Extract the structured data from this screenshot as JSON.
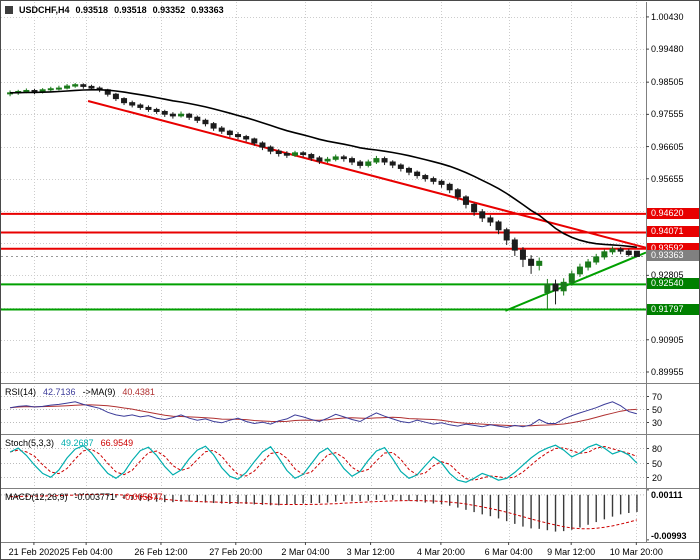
{
  "colors": {
    "background": "#FFFFFF",
    "bull": "#1A7A1A",
    "bear": "#1C1C1C",
    "grid": "#CCCCCC",
    "ma": "#000000",
    "separator": "#808080",
    "text": "#000000",
    "resistance": "#E80000",
    "support": "#00A000",
    "current_price_box": "#808080"
  },
  "chart_data": [
    {
      "type": "candlestick",
      "symbol": "USDCHF,H4",
      "ohlc": [
        "0.93518",
        "0.93518",
        "0.93352",
        "0.93363"
      ],
      "ylim": [
        0.8963,
        1.0087
      ],
      "ma_period": 20,
      "grid_prices": [
        1.0043,
        0.9948,
        0.98505,
        0.97555,
        0.96605,
        0.95655,
        0.94705,
        0.93755,
        0.92805,
        0.91855,
        0.90905,
        0.89955
      ],
      "axis_labels": [
        {
          "text": "1.00430",
          "price": 1.0043
        },
        {
          "text": "0.99480",
          "price": 0.9948
        },
        {
          "text": "0.98505",
          "price": 0.98505
        },
        {
          "text": "0.97555",
          "price": 0.97555
        },
        {
          "text": "0.96605",
          "price": 0.96605
        },
        {
          "text": "0.95655",
          "price": 0.95655
        },
        {
          "text": "0.92805",
          "price": 0.92805
        },
        {
          "text": "0.90905",
          "price": 0.90905
        },
        {
          "text": "0.89955",
          "price": 0.89955
        }
      ],
      "price_boxes": [
        {
          "text": "0.94620",
          "price": 0.9462,
          "bg": "#E80000"
        },
        {
          "text": "0.94071",
          "price": 0.94071,
          "bg": "#E80000"
        },
        {
          "text": "0.93592",
          "price": 0.93592,
          "bg": "#E80000"
        },
        {
          "text": "0.93363",
          "price": 0.93363,
          "bg": "#808080",
          "dashed_line": true
        },
        {
          "text": "0.92540",
          "price": 0.9254,
          "bg": "#008000"
        },
        {
          "text": "0.91797",
          "price": 0.91797,
          "bg": "#008000"
        }
      ],
      "hlines": [
        {
          "price": 0.9462,
          "color": "#E80000"
        },
        {
          "price": 0.94071,
          "color": "#E80000"
        },
        {
          "price": 0.93592,
          "color": "#E80000"
        },
        {
          "price": 0.9254,
          "color": "#00A000"
        },
        {
          "price": 0.91797,
          "color": "#00A000"
        }
      ],
      "trendlines": [
        {
          "x1f": 0.135,
          "p1": 0.9795,
          "x2f": 1.0,
          "p2": 0.9362,
          "color": "#E80000"
        },
        {
          "x1f": 0.782,
          "p1": 0.9176,
          "x2f": 1.0,
          "p2": 0.9348,
          "color": "#00A000"
        }
      ],
      "x_labels": [
        {
          "text": "21 Feb 2020",
          "xf": 0.051
        },
        {
          "text": "25 Feb 04:00",
          "xf": 0.132
        },
        {
          "text": "26 Feb 12:00",
          "xf": 0.248
        },
        {
          "text": "27 Feb 20:00",
          "xf": 0.364
        },
        {
          "text": "2 Mar 04:00",
          "xf": 0.472
        },
        {
          "text": "3 Mar 12:00",
          "xf": 0.573
        },
        {
          "text": "4 Mar 20:00",
          "xf": 0.682
        },
        {
          "text": "6 Mar 04:00",
          "xf": 0.787
        },
        {
          "text": "9 Mar 12:00",
          "xf": 0.884
        },
        {
          "text": "10 Mar 20:00",
          "xf": 0.985
        }
      ],
      "candles": [
        [
          0.9816,
          0.9826,
          0.9809,
          0.9819
        ],
        [
          0.9819,
          0.9828,
          0.9813,
          0.9823
        ],
        [
          0.9823,
          0.9832,
          0.9818,
          0.9826
        ],
        [
          0.9826,
          0.9831,
          0.9815,
          0.9822
        ],
        [
          0.9822,
          0.9833,
          0.9817,
          0.9828
        ],
        [
          0.9828,
          0.9837,
          0.9823,
          0.9831
        ],
        [
          0.9831,
          0.984,
          0.9826,
          0.9833
        ],
        [
          0.9833,
          0.9845,
          0.9829,
          0.9839
        ],
        [
          0.9839,
          0.9848,
          0.9834,
          0.9843
        ],
        [
          0.9843,
          0.9847,
          0.9831,
          0.9838
        ],
        [
          0.9838,
          0.9843,
          0.9827,
          0.9833
        ],
        [
          0.9833,
          0.9838,
          0.9821,
          0.9828
        ],
        [
          0.9828,
          0.9831,
          0.9808,
          0.9815
        ],
        [
          0.9815,
          0.9819,
          0.9795,
          0.9802
        ],
        [
          0.9802,
          0.9806,
          0.9783,
          0.979
        ],
        [
          0.979,
          0.9796,
          0.9776,
          0.9783
        ],
        [
          0.9783,
          0.9788,
          0.9769,
          0.9776
        ],
        [
          0.9776,
          0.9782,
          0.9763,
          0.977
        ],
        [
          0.977,
          0.9775,
          0.9757,
          0.9764
        ],
        [
          0.9764,
          0.9769,
          0.9748,
          0.9756
        ],
        [
          0.9756,
          0.9762,
          0.9743,
          0.9751
        ],
        [
          0.9751,
          0.9764,
          0.9746,
          0.9756
        ],
        [
          0.9756,
          0.976,
          0.9739,
          0.9747
        ],
        [
          0.9747,
          0.9752,
          0.973,
          0.9738
        ],
        [
          0.9738,
          0.9743,
          0.972,
          0.9728
        ],
        [
          0.9728,
          0.9733,
          0.9707,
          0.9715
        ],
        [
          0.9715,
          0.9721,
          0.9698,
          0.9706
        ],
        [
          0.9706,
          0.971,
          0.9688,
          0.9696
        ],
        [
          0.9696,
          0.9703,
          0.9682,
          0.969
        ],
        [
          0.969,
          0.9695,
          0.9675,
          0.9683
        ],
        [
          0.9683,
          0.9687,
          0.9663,
          0.9671
        ],
        [
          0.9671,
          0.9676,
          0.965,
          0.9659
        ],
        [
          0.9659,
          0.9664,
          0.9638,
          0.9647
        ],
        [
          0.9647,
          0.9653,
          0.9631,
          0.964
        ],
        [
          0.964,
          0.9647,
          0.9627,
          0.9635
        ],
        [
          0.9635,
          0.9648,
          0.963,
          0.9642
        ],
        [
          0.9642,
          0.9647,
          0.9629,
          0.9637
        ],
        [
          0.9637,
          0.9642,
          0.9618,
          0.9627
        ],
        [
          0.9627,
          0.9633,
          0.9609,
          0.9618
        ],
        [
          0.9618,
          0.963,
          0.9612,
          0.9623
        ],
        [
          0.9623,
          0.9637,
          0.9617,
          0.963
        ],
        [
          0.963,
          0.9636,
          0.9616,
          0.9625
        ],
        [
          0.9625,
          0.9631,
          0.9606,
          0.9615
        ],
        [
          0.9615,
          0.9621,
          0.9596,
          0.9605
        ],
        [
          0.9605,
          0.9622,
          0.9599,
          0.9615
        ],
        [
          0.9615,
          0.9633,
          0.9609,
          0.9625
        ],
        [
          0.9625,
          0.9631,
          0.9606,
          0.9615
        ],
        [
          0.9615,
          0.962,
          0.9597,
          0.9606
        ],
        [
          0.9606,
          0.9611,
          0.9587,
          0.9596
        ],
        [
          0.9596,
          0.9601,
          0.9576,
          0.9585
        ],
        [
          0.9585,
          0.959,
          0.9566,
          0.9575
        ],
        [
          0.9575,
          0.958,
          0.9557,
          0.9566
        ],
        [
          0.9566,
          0.9572,
          0.9549,
          0.9558
        ],
        [
          0.9558,
          0.9563,
          0.9539,
          0.9549
        ],
        [
          0.9549,
          0.9554,
          0.9523,
          0.9533
        ],
        [
          0.9533,
          0.9538,
          0.9501,
          0.9512
        ],
        [
          0.9512,
          0.9517,
          0.9478,
          0.949
        ],
        [
          0.949,
          0.9495,
          0.9456,
          0.9468
        ],
        [
          0.9468,
          0.9476,
          0.9438,
          0.945
        ],
        [
          0.945,
          0.9458,
          0.9426,
          0.9438
        ],
        [
          0.9438,
          0.9443,
          0.9402,
          0.9415
        ],
        [
          0.9415,
          0.9421,
          0.937,
          0.9385
        ],
        [
          0.9385,
          0.9392,
          0.9338,
          0.9355
        ],
        [
          0.9355,
          0.9364,
          0.9305,
          0.9328
        ],
        [
          0.9328,
          0.934,
          0.9285,
          0.931
        ],
        [
          0.931,
          0.9333,
          0.9295,
          0.9322
        ],
        [
          0.923,
          0.927,
          0.918,
          0.9255
        ],
        [
          0.9255,
          0.9268,
          0.9195,
          0.9235
        ],
        [
          0.9235,
          0.9272,
          0.9221,
          0.926
        ],
        [
          0.926,
          0.9295,
          0.925,
          0.9285
        ],
        [
          0.9285,
          0.9315,
          0.9276,
          0.9305
        ],
        [
          0.9305,
          0.9329,
          0.9295,
          0.932
        ],
        [
          0.932,
          0.9344,
          0.9312,
          0.9335
        ],
        [
          0.9335,
          0.9357,
          0.9327,
          0.935
        ],
        [
          0.935,
          0.9366,
          0.9342,
          0.9358
        ],
        [
          0.9358,
          0.9364,
          0.9343,
          0.9352
        ],
        [
          0.9352,
          0.9359,
          0.9336,
          0.9342
        ],
        [
          0.93518,
          0.93518,
          0.93352,
          0.93363
        ]
      ]
    },
    {
      "type": "line",
      "label": "RSI(14)",
      "value": "42.7136",
      "ma_label": "->MA(9)",
      "ma_value": "40.4381",
      "levels": [
        70,
        50,
        30
      ],
      "ylim": [
        12,
        88
      ],
      "ma_period": 9,
      "colors": {
        "main": "#3C3C99",
        "signal": "#B03030"
      },
      "values": [
        52,
        54,
        55,
        53,
        54,
        56,
        57,
        59,
        61,
        57,
        54,
        51,
        45,
        41,
        39,
        41,
        38,
        40,
        36,
        34,
        37,
        41,
        36,
        33,
        35,
        31,
        29,
        33,
        36,
        31,
        28,
        30,
        27,
        32,
        35,
        41,
        38,
        34,
        31,
        36,
        42,
        38,
        34,
        31,
        38,
        44,
        39,
        35,
        31,
        29,
        33,
        30,
        27,
        29,
        26,
        24,
        27,
        25,
        23,
        26,
        24,
        22,
        25,
        23,
        26,
        34,
        28,
        28,
        35,
        40,
        44,
        48,
        52,
        57,
        61,
        55,
        46,
        42.71
      ]
    },
    {
      "type": "line",
      "label": "Stoch(5,3,3)",
      "value_k": "49.2687",
      "value_d": "66.9549",
      "levels": [
        80,
        50,
        20
      ],
      "ylim": [
        -2,
        107
      ],
      "d_period": 3,
      "colors": {
        "k": "#00AEAE",
        "d": "#CC0000"
      },
      "values": [
        72,
        80,
        65,
        45,
        28,
        20,
        35,
        60,
        78,
        85,
        70,
        48,
        28,
        18,
        30,
        55,
        75,
        82,
        65,
        42,
        25,
        35,
        58,
        76,
        84,
        66,
        40,
        22,
        16,
        30,
        52,
        72,
        83,
        60,
        34,
        18,
        26,
        48,
        70,
        80,
        62,
        38,
        22,
        32,
        55,
        74,
        81,
        58,
        32,
        18,
        25,
        44,
        62,
        50,
        28,
        14,
        10,
        18,
        28,
        22,
        14,
        18,
        30,
        45,
        60,
        72,
        80,
        86,
        76,
        62,
        70,
        82,
        88,
        80,
        68,
        74,
        66,
        49.27
      ]
    },
    {
      "type": "macd",
      "label": "MACD(12,26,9)",
      "value_main": "-0.003771",
      "value_signal": "-0.005877",
      "ylim": [
        -0.0104,
        0.0013
      ],
      "signal_period": 9,
      "axis_labels": [
        {
          "text": "0.00111",
          "v": 0.00111
        },
        {
          "text": "-0.00993",
          "v": -0.00993
        }
      ],
      "colors": {
        "hist": "#3A3A3A",
        "signal": "#CC0000"
      },
      "values": [
        -0.0004,
        -0.0003,
        -0.0002,
        -0.0002,
        -0.0001,
        0,
        0.0001,
        0.0003,
        0.0004,
        0.0004,
        0.0002,
        0,
        -0.0003,
        -0.0006,
        -0.0009,
        -0.0011,
        -0.0013,
        -0.0014,
        -0.0015,
        -0.0016,
        -0.0016,
        -0.0015,
        -0.0015,
        -0.0016,
        -0.0017,
        -0.0018,
        -0.0019,
        -0.002,
        -0.002,
        -0.002,
        -0.0021,
        -0.0022,
        -0.0023,
        -0.0023,
        -0.0022,
        -0.002,
        -0.0019,
        -0.0018,
        -0.0018,
        -0.0017,
        -0.0015,
        -0.0014,
        -0.0014,
        -0.0014,
        -0.0013,
        -0.0011,
        -0.0011,
        -0.0011,
        -0.0012,
        -0.0013,
        -0.0015,
        -0.0017,
        -0.0019,
        -0.0021,
        -0.0024,
        -0.0028,
        -0.0033,
        -0.0038,
        -0.0043,
        -0.0047,
        -0.0052,
        -0.0058,
        -0.0064,
        -0.007,
        -0.0074,
        -0.0075,
        -0.0078,
        -0.0081,
        -0.008,
        -0.0077,
        -0.0072,
        -0.0066,
        -0.006,
        -0.0054,
        -0.0048,
        -0.0043,
        -0.004,
        -0.00377
      ]
    }
  ]
}
